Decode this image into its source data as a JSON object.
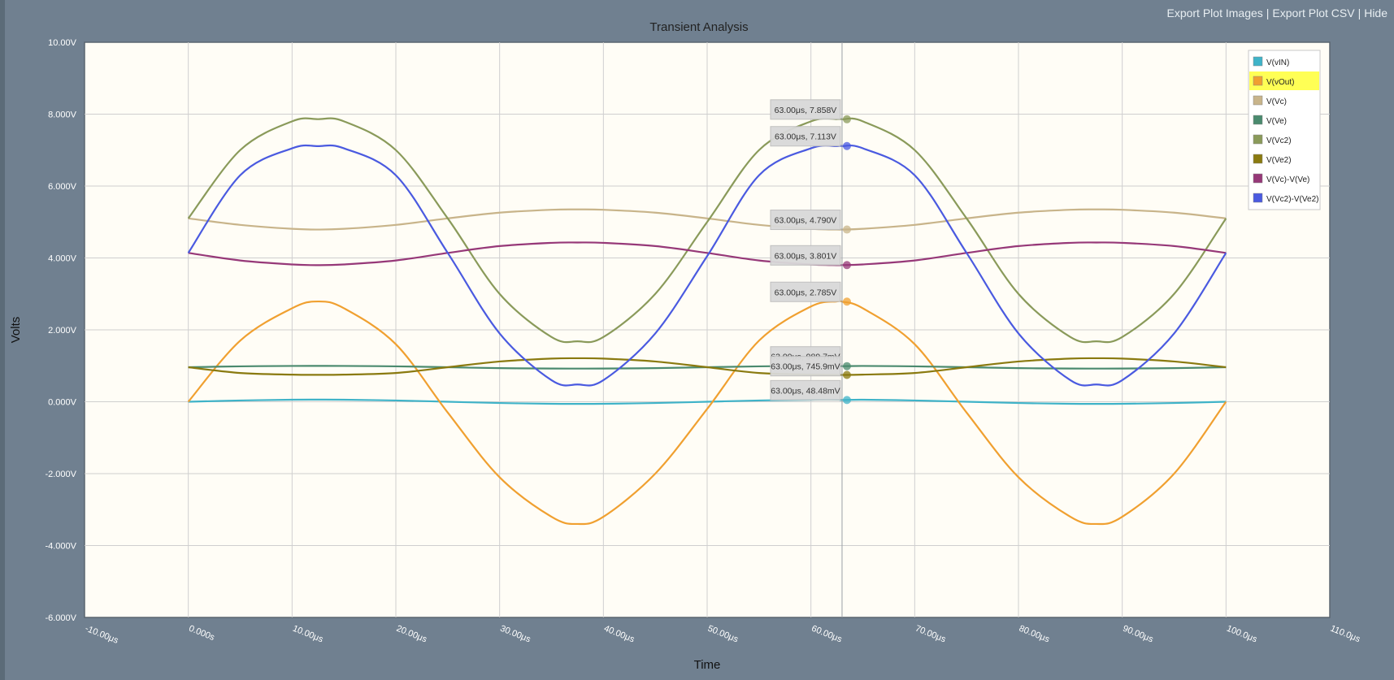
{
  "header": {
    "links": [
      {
        "label": "Export Plot Images"
      },
      {
        "label": "Export Plot CSV"
      },
      {
        "label": "Hide"
      }
    ]
  },
  "chart_data": {
    "type": "line",
    "title": "Transient Analysis",
    "xlabel": "Time",
    "ylabel": "Volts",
    "xlim": [
      -10,
      110
    ],
    "ylim": [
      -6,
      10
    ],
    "x_unit": "μs",
    "xticks": [
      -10,
      0,
      10,
      20,
      30,
      40,
      50,
      60,
      70,
      80,
      90,
      100,
      110
    ],
    "xtick_labels": [
      "-10.00μs",
      "0.000s",
      "10.00μs",
      "20.00μs",
      "30.00μs",
      "40.00μs",
      "50.00μs",
      "60.00μs",
      "70.00μs",
      "80.00μs",
      "90.00μs",
      "100.0μs",
      "110.0μs"
    ],
    "yticks": [
      -6,
      -4,
      -2,
      0,
      2,
      4,
      6,
      8,
      10
    ],
    "ytick_labels": [
      "-6.000V",
      "-4.000V",
      "-2.000V",
      "0.000V",
      "2.000V",
      "4.000V",
      "6.000V",
      "8.000V",
      "10.00V"
    ],
    "grid": true,
    "legend_position": "top-right",
    "cursor_x": 63,
    "x": [
      0,
      5,
      10,
      12.5,
      15,
      20,
      25,
      30,
      35,
      37.5,
      40,
      45,
      50,
      55,
      60,
      62.5,
      63,
      65,
      70,
      75,
      80,
      85,
      87.5,
      90,
      95,
      100
    ],
    "series": [
      {
        "name": "V(vIN)",
        "color": "#3fb3c8",
        "highlight": false,
        "values": [
          0,
          0.035,
          0.057,
          0.06,
          0.057,
          0.035,
          0,
          -0.035,
          -0.057,
          -0.06,
          -0.057,
          -0.035,
          0,
          0.035,
          0.057,
          0.06,
          0.048,
          0.057,
          0.035,
          0,
          -0.035,
          -0.057,
          -0.06,
          -0.057,
          -0.035,
          0
        ]
      },
      {
        "name": "V(vOut)",
        "color": "#f0a030",
        "highlight": true,
        "values": [
          0,
          1.7,
          2.6,
          2.79,
          2.6,
          1.6,
          -0.3,
          -2.1,
          -3.2,
          -3.4,
          -3.2,
          -2.0,
          -0.2,
          1.7,
          2.65,
          2.79,
          2.785,
          2.6,
          1.6,
          -0.3,
          -2.1,
          -3.2,
          -3.4,
          -3.2,
          -2.0,
          0
        ]
      },
      {
        "name": "V(Vc)",
        "color": "#c8b48a",
        "highlight": false,
        "values": [
          5.1,
          4.92,
          4.81,
          4.79,
          4.81,
          4.92,
          5.1,
          5.26,
          5.34,
          5.35,
          5.34,
          5.26,
          5.1,
          4.92,
          4.81,
          4.79,
          4.79,
          4.81,
          4.92,
          5.1,
          5.26,
          5.34,
          5.35,
          5.34,
          5.26,
          5.1
        ]
      },
      {
        "name": "V(Ve)",
        "color": "#4a8a6e",
        "highlight": false,
        "values": [
          0.96,
          0.985,
          0.996,
          0.998,
          0.996,
          0.985,
          0.96,
          0.935,
          0.924,
          0.922,
          0.924,
          0.935,
          0.96,
          0.985,
          0.996,
          0.998,
          0.9897,
          0.996,
          0.985,
          0.96,
          0.935,
          0.924,
          0.922,
          0.924,
          0.935,
          0.96
        ]
      },
      {
        "name": "V(Vc2)",
        "color": "#8a9a5a",
        "highlight": false,
        "values": [
          5.1,
          7.0,
          7.8,
          7.86,
          7.8,
          7.0,
          5.1,
          3.0,
          1.8,
          1.68,
          1.8,
          3.0,
          5.0,
          7.0,
          7.8,
          7.86,
          7.858,
          7.8,
          7.0,
          5.1,
          3.0,
          1.8,
          1.68,
          1.8,
          3.0,
          5.1
        ]
      },
      {
        "name": "V(Ve2)",
        "color": "#8a7a10",
        "highlight": false,
        "values": [
          0.96,
          0.8,
          0.755,
          0.748,
          0.755,
          0.8,
          0.96,
          1.12,
          1.2,
          1.21,
          1.2,
          1.12,
          0.96,
          0.8,
          0.755,
          0.748,
          0.7459,
          0.755,
          0.8,
          0.96,
          1.12,
          1.2,
          1.21,
          1.2,
          1.12,
          0.96
        ]
      },
      {
        "name": "V(Vc)-V(Ve)",
        "color": "#963878",
        "highlight": false,
        "values": [
          4.14,
          3.93,
          3.82,
          3.8,
          3.82,
          3.93,
          4.14,
          4.33,
          4.42,
          4.43,
          4.42,
          4.33,
          4.14,
          3.93,
          3.82,
          3.8,
          3.801,
          3.82,
          3.93,
          4.14,
          4.33,
          4.42,
          4.43,
          4.42,
          4.33,
          4.14
        ]
      },
      {
        "name": "V(Vc2)-V(Ve2)",
        "color": "#4a5ae0",
        "highlight": false,
        "values": [
          4.14,
          6.3,
          7.05,
          7.11,
          7.05,
          6.3,
          4.14,
          1.9,
          0.6,
          0.48,
          0.6,
          1.9,
          4.05,
          6.3,
          7.05,
          7.11,
          7.113,
          7.05,
          6.3,
          4.14,
          1.9,
          0.6,
          0.48,
          0.6,
          1.9,
          4.14
        ]
      }
    ],
    "tooltips": [
      {
        "series": "V(Vc2)",
        "label": "63.00μs, 7.858V",
        "y": 7.858
      },
      {
        "series": "V(Vc2)-V(Ve2)",
        "label": "63.00μs, 7.113V",
        "y": 7.113
      },
      {
        "series": "V(Vc)",
        "label": "63.00μs, 4.790V",
        "y": 4.79
      },
      {
        "series": "V(Vc)-V(Ve)",
        "label": "63.00μs, 3.801V",
        "y": 3.801
      },
      {
        "series": "V(vOut)",
        "label": "63.00μs, 2.785V",
        "y": 2.785
      },
      {
        "series": "V(Ve2)",
        "label": "63.00μs, 745.9mV",
        "y": 0.7459
      },
      {
        "series": "V(Ve)",
        "label": "63.00μs, 989.7mV",
        "y": 0.9897
      },
      {
        "series": "V(vIN)",
        "label": "63.00μs, 48.48mV",
        "y": 0.04848
      }
    ]
  }
}
